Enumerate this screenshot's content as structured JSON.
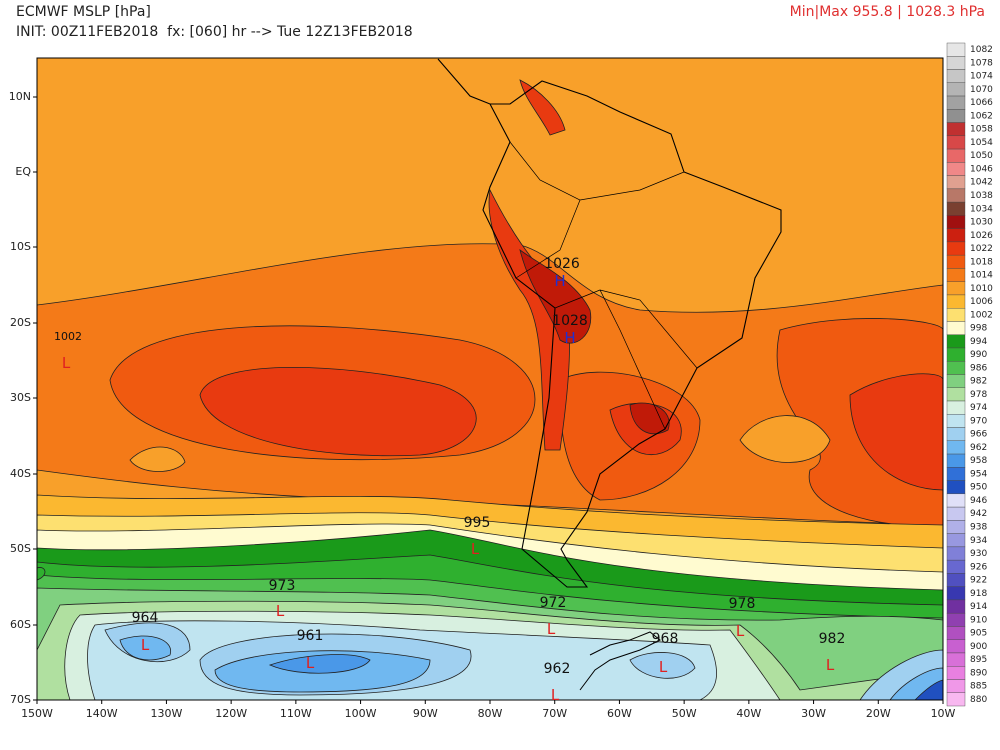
{
  "header": {
    "title": "ECMWF MSLP [hPa]",
    "init": "INIT: 00Z11FEB2018  fx: [060] hr --> Tue 12Z13FEB2018",
    "minmax": "Min|Max 955.8 | 1028.3 hPa"
  },
  "map": {
    "lat_labels": [
      "10N",
      "EQ",
      "10S",
      "20S",
      "30S",
      "40S",
      "50S",
      "60S",
      "70S"
    ],
    "lon_labels": [
      "150W",
      "140W",
      "130W",
      "120W",
      "110W",
      "100W",
      "90W",
      "80W",
      "70W",
      "60W",
      "50W",
      "40W",
      "30W",
      "20W",
      "10W"
    ],
    "systems": [
      {
        "value": "1002",
        "center": "L"
      },
      {
        "value": "1026",
        "center": "H"
      },
      {
        "value": "1028",
        "center": "H"
      },
      {
        "value": "995",
        "center": "L"
      },
      {
        "value": "973",
        "center": "L"
      },
      {
        "value": "964",
        "center": "L"
      },
      {
        "value": "961",
        "center": "L"
      },
      {
        "value": "972",
        "center": "L"
      },
      {
        "value": "978",
        "center": "L"
      },
      {
        "value": "982",
        "center": "L"
      },
      {
        "value": "968",
        "center": "L"
      },
      {
        "value": "962",
        "center": "L"
      }
    ]
  },
  "colorbar": {
    "labels": [
      "1082",
      "1078",
      "1074",
      "1070",
      "1066",
      "1062",
      "1058",
      "1054",
      "1050",
      "1046",
      "1042",
      "1038",
      "1034",
      "1030",
      "1026",
      "1022",
      "1018",
      "1014",
      "1010",
      "1006",
      "1002",
      "998",
      "994",
      "990",
      "986",
      "982",
      "978",
      "974",
      "970",
      "966",
      "962",
      "958",
      "954",
      "950",
      "946",
      "942",
      "938",
      "934",
      "930",
      "926",
      "922",
      "918",
      "914",
      "910",
      "905",
      "900",
      "895",
      "890",
      "885",
      "880"
    ]
  }
}
